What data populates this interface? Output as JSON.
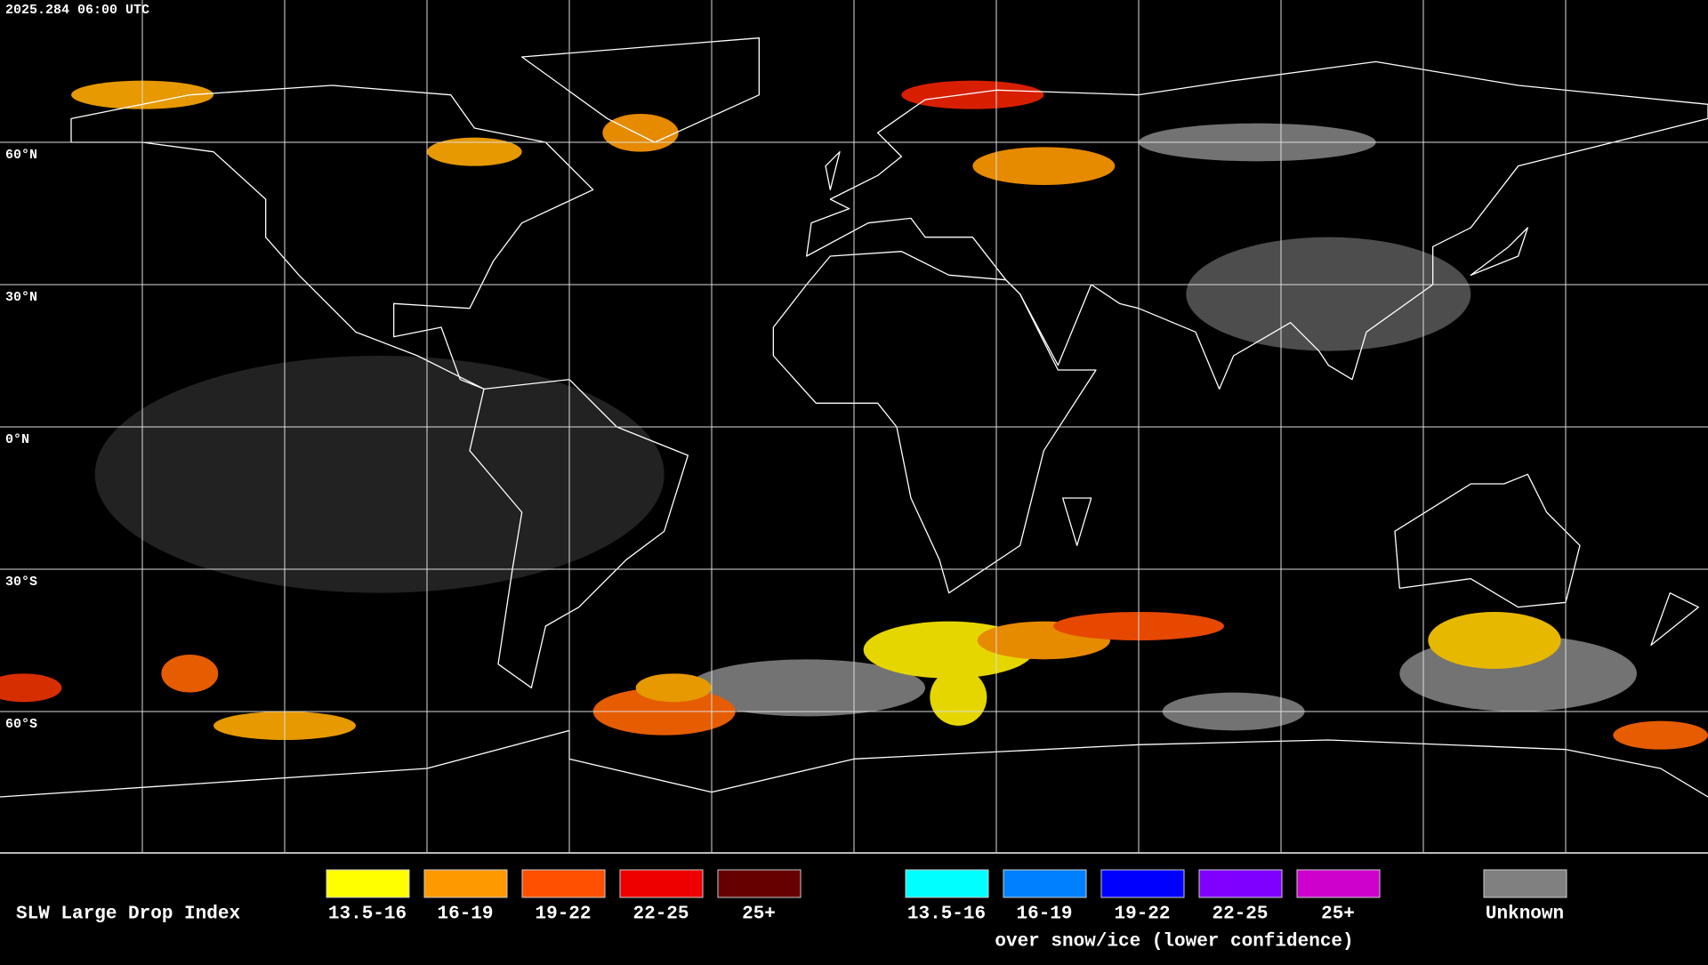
{
  "header": {
    "timestamp": "2025.284 06:00 UTC"
  },
  "map": {
    "lat_labels": [
      "60°N",
      "30°N",
      "0°N",
      "30°S",
      "60°S"
    ]
  },
  "legend": {
    "title": "SLW Large Drop Index",
    "items": [
      {
        "label": "13.5-16",
        "color": "#ffff00"
      },
      {
        "label": "16-19",
        "color": "#ff9900"
      },
      {
        "label": "19-22",
        "color": "#ff5000"
      },
      {
        "label": "22-25",
        "color": "#ee0000"
      },
      {
        "label": "25+",
        "color": "#660000"
      }
    ],
    "snow_ice_items": [
      {
        "label": "13.5-16",
        "color": "#00ffff"
      },
      {
        "label": "16-19",
        "color": "#0080ff"
      },
      {
        "label": "19-22",
        "color": "#0000ff"
      },
      {
        "label": "22-25",
        "color": "#8000ff"
      },
      {
        "label": "25+",
        "color": "#cc00cc"
      }
    ],
    "snow_ice_caption": "over snow/ice (lower confidence)",
    "unknown": {
      "label": "Unknown",
      "color": "#808080"
    }
  }
}
